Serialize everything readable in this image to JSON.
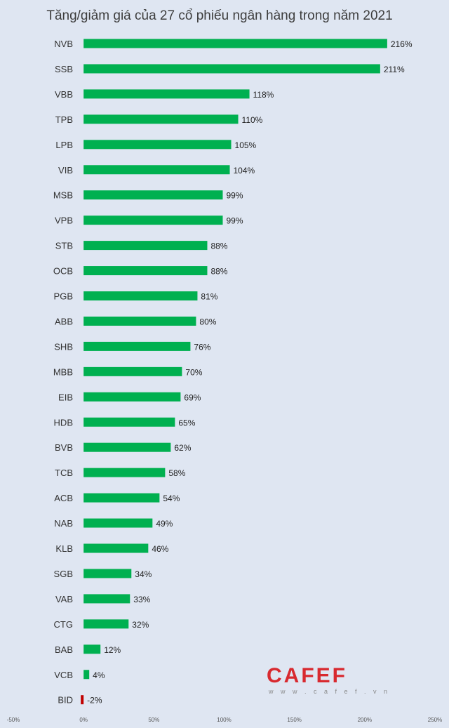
{
  "chart_data": {
    "type": "bar",
    "orientation": "horizontal",
    "title": "Tăng/giảm giá của 27 cổ phiếu ngân hàng trong năm 2021",
    "xlabel": "",
    "ylabel": "",
    "categories": [
      "NVB",
      "SSB",
      "VBB",
      "TPB",
      "LPB",
      "VIB",
      "MSB",
      "VPB",
      "STB",
      "OCB",
      "PGB",
      "ABB",
      "SHB",
      "MBB",
      "EIB",
      "HDB",
      "BVB",
      "TCB",
      "ACB",
      "NAB",
      "KLB",
      "SGB",
      "VAB",
      "CTG",
      "BAB",
      "VCB",
      "BID"
    ],
    "values": [
      216,
      211,
      118,
      110,
      105,
      104,
      99,
      99,
      88,
      88,
      81,
      80,
      76,
      70,
      69,
      65,
      62,
      58,
      54,
      49,
      46,
      34,
      33,
      32,
      12,
      4,
      -2
    ],
    "value_labels": [
      "216%",
      "211%",
      "118%",
      "110%",
      "105%",
      "104%",
      "99%",
      "99%",
      "88%",
      "88%",
      "81%",
      "80%",
      "76%",
      "70%",
      "69%",
      "65%",
      "62%",
      "58%",
      "54%",
      "49%",
      "46%",
      "34%",
      "33%",
      "32%",
      "12%",
      "4%",
      "-2%"
    ],
    "unit": "%",
    "xlim": [
      -50,
      250
    ],
    "x_ticks": [
      -50,
      0,
      50,
      100,
      150,
      200,
      250
    ],
    "x_tick_labels": [
      "-50%",
      "0%",
      "50%",
      "100%",
      "150%",
      "200%",
      "250%"
    ],
    "grid": false,
    "legend": "none",
    "colors": {
      "positive": "#00b050",
      "negative": "#c00000",
      "background": "#dfe6f2"
    }
  },
  "watermark": {
    "brand": "CAFEF",
    "url": "w w w . c a f e f . v n"
  }
}
